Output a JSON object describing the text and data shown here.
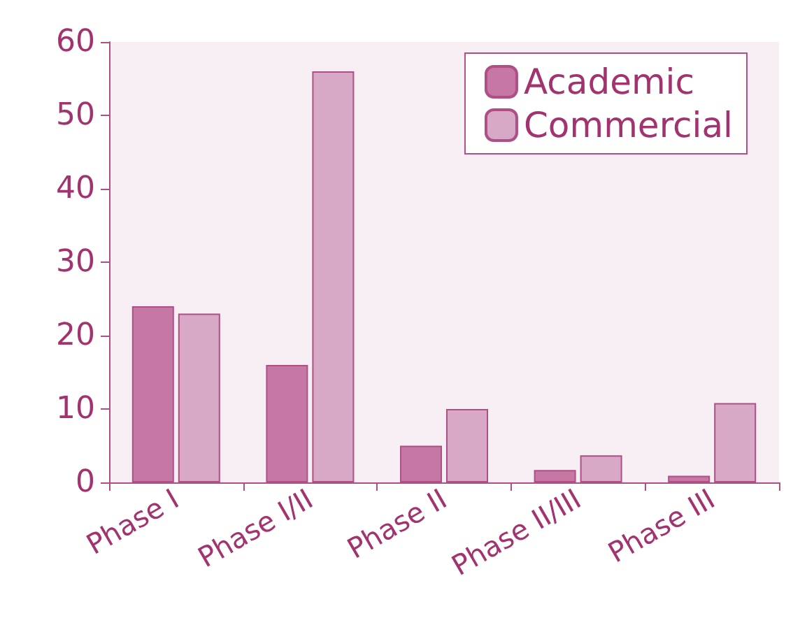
{
  "chart_data": {
    "type": "bar",
    "categories": [
      "Phase I",
      "Phase I/II",
      "Phase II",
      "Phase II/III",
      "Phase III"
    ],
    "series": [
      {
        "name": "Academic",
        "color": "#c677a3",
        "values": [
          24,
          16,
          5,
          1.7,
          0.9
        ]
      },
      {
        "name": "Commercial",
        "color": "#d8a9c6",
        "values": [
          23,
          56,
          10,
          3.7,
          10.8
        ]
      }
    ],
    "ylim": [
      0,
      60
    ],
    "yticks": [
      0,
      10,
      20,
      30,
      40,
      50,
      60
    ],
    "grid": false,
    "legend": "top right"
  }
}
